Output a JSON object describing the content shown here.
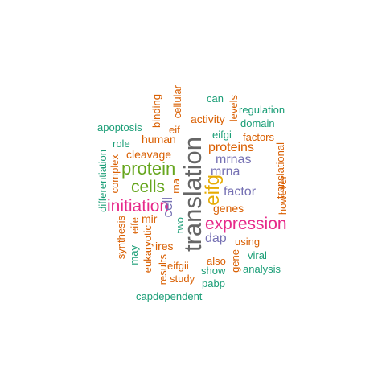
{
  "palette": {
    "green": "#1b9e77",
    "orange": "#d95f02",
    "purple": "#7570b3",
    "magenta": "#e7298a",
    "lime": "#66a61e",
    "gold": "#e6ab02",
    "gray": "#666666"
  },
  "words": [
    {
      "text": "can",
      "color": "green",
      "vertical": false
    },
    {
      "text": "regulation",
      "color": "green",
      "vertical": false
    },
    {
      "text": "cellular",
      "color": "orange",
      "vertical": true
    },
    {
      "text": "binding",
      "color": "orange",
      "vertical": true
    },
    {
      "text": "levels",
      "color": "orange",
      "vertical": true
    },
    {
      "text": "domain",
      "color": "green",
      "vertical": false
    },
    {
      "text": "activity",
      "color": "orange",
      "vertical": false
    },
    {
      "text": "apoptosis",
      "color": "green",
      "vertical": false
    },
    {
      "text": "eif",
      "color": "orange",
      "vertical": false
    },
    {
      "text": "eifgi",
      "color": "green",
      "vertical": false
    },
    {
      "text": "factors",
      "color": "orange",
      "vertical": false
    },
    {
      "text": "human",
      "color": "orange",
      "vertical": false
    },
    {
      "text": "role",
      "color": "green",
      "vertical": false
    },
    {
      "text": "proteins",
      "color": "orange",
      "vertical": false
    },
    {
      "text": "cleavage",
      "color": "orange",
      "vertical": false
    },
    {
      "text": "differentiation",
      "color": "green",
      "vertical": true
    },
    {
      "text": "complex",
      "color": "orange",
      "vertical": true
    },
    {
      "text": "mrnas",
      "color": "purple",
      "vertical": false
    },
    {
      "text": "protein",
      "color": "lime",
      "vertical": false
    },
    {
      "text": "translation",
      "color": "gray",
      "vertical": true
    },
    {
      "text": "mrna",
      "color": "purple",
      "vertical": false
    },
    {
      "text": "rna",
      "color": "orange",
      "vertical": true
    },
    {
      "text": "translational",
      "color": "orange",
      "vertical": true
    },
    {
      "text": "cells",
      "color": "lime",
      "vertical": false
    },
    {
      "text": "eifg",
      "color": "gold",
      "vertical": true
    },
    {
      "text": "factor",
      "color": "purple",
      "vertical": false
    },
    {
      "text": "however",
      "color": "orange",
      "vertical": true
    },
    {
      "text": "initiation",
      "color": "magenta",
      "vertical": false
    },
    {
      "text": "cell",
      "color": "purple",
      "vertical": true
    },
    {
      "text": "genes",
      "color": "orange",
      "vertical": false
    },
    {
      "text": "mir",
      "color": "orange",
      "vertical": false
    },
    {
      "text": "two",
      "color": "green",
      "vertical": true
    },
    {
      "text": "expression",
      "color": "magenta",
      "vertical": false
    },
    {
      "text": "synthesis",
      "color": "orange",
      "vertical": true
    },
    {
      "text": "eife",
      "color": "orange",
      "vertical": true
    },
    {
      "text": "dap",
      "color": "purple",
      "vertical": false
    },
    {
      "text": "using",
      "color": "orange",
      "vertical": false
    },
    {
      "text": "may",
      "color": "green",
      "vertical": true
    },
    {
      "text": "eukaryotic",
      "color": "orange",
      "vertical": true
    },
    {
      "text": "ires",
      "color": "orange",
      "vertical": false
    },
    {
      "text": "viral",
      "color": "green",
      "vertical": false
    },
    {
      "text": "also",
      "color": "orange",
      "vertical": false
    },
    {
      "text": "gene",
      "color": "orange",
      "vertical": true
    },
    {
      "text": "results",
      "color": "orange",
      "vertical": true
    },
    {
      "text": "eifgii",
      "color": "orange",
      "vertical": false
    },
    {
      "text": "show",
      "color": "green",
      "vertical": false
    },
    {
      "text": "analysis",
      "color": "green",
      "vertical": false
    },
    {
      "text": "study",
      "color": "orange",
      "vertical": false
    },
    {
      "text": "pabp",
      "color": "green",
      "vertical": false
    },
    {
      "text": "capdependent",
      "color": "green",
      "vertical": false
    }
  ]
}
